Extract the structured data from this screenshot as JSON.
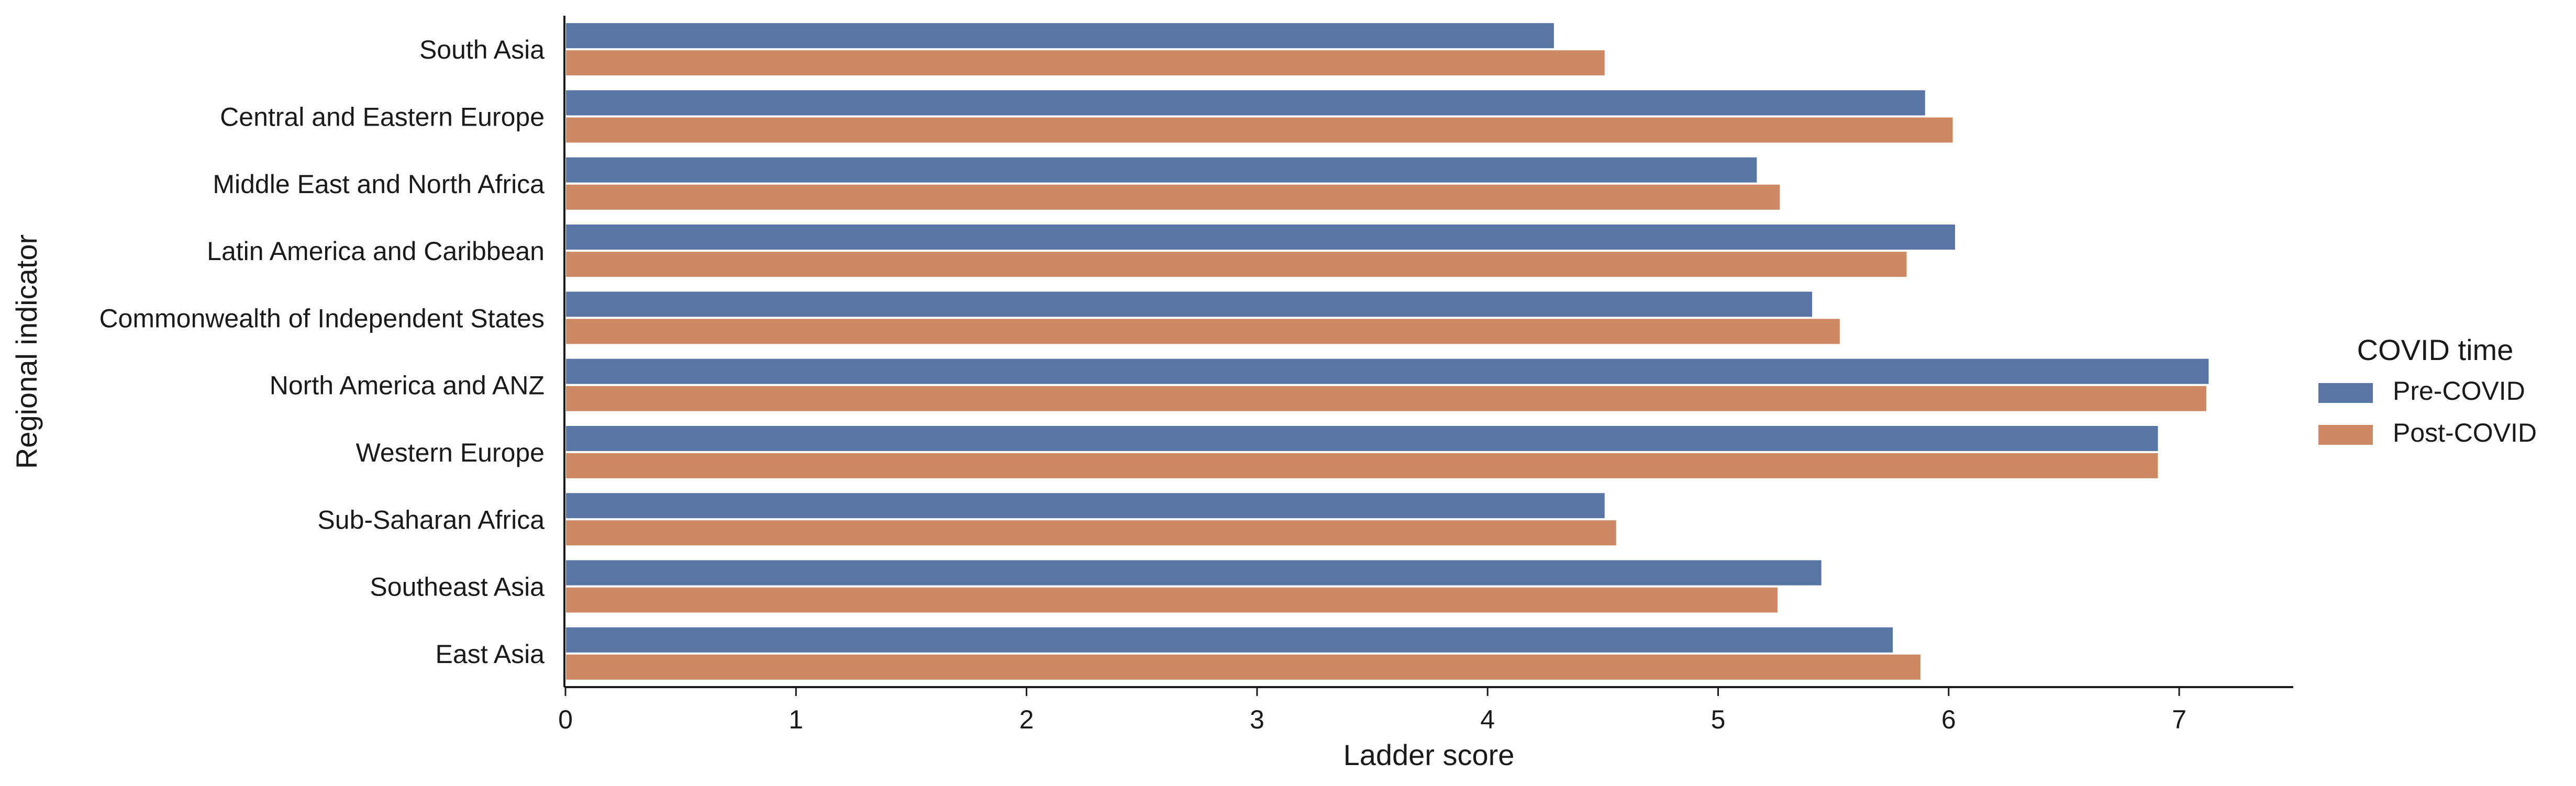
{
  "chart_data": {
    "type": "bar",
    "orientation": "horizontal",
    "xlabel": "Ladder score",
    "ylabel": "Regional indicator",
    "xlim": [
      0,
      7.5
    ],
    "xticks": [
      0,
      1,
      2,
      3,
      4,
      5,
      6,
      7
    ],
    "grid": false,
    "categories": [
      "South Asia",
      "Central and Eastern Europe",
      "Middle East and North Africa",
      "Latin America and Caribbean",
      "Commonwealth of Independent States",
      "North America and ANZ",
      "Western Europe",
      "Sub-Saharan Africa",
      "Southeast Asia",
      "East Asia"
    ],
    "legend": {
      "title": "COVID time",
      "placement": "right"
    },
    "series": [
      {
        "name": "Pre-COVID",
        "color": "#5875a4",
        "values": [
          4.29,
          5.9,
          5.17,
          6.03,
          5.41,
          7.13,
          6.91,
          4.51,
          5.45,
          5.76
        ]
      },
      {
        "name": "Post-COVID",
        "color": "#cc8963",
        "values": [
          4.51,
          6.02,
          5.27,
          5.82,
          5.53,
          7.12,
          6.91,
          4.56,
          5.26,
          5.88
        ]
      }
    ]
  }
}
